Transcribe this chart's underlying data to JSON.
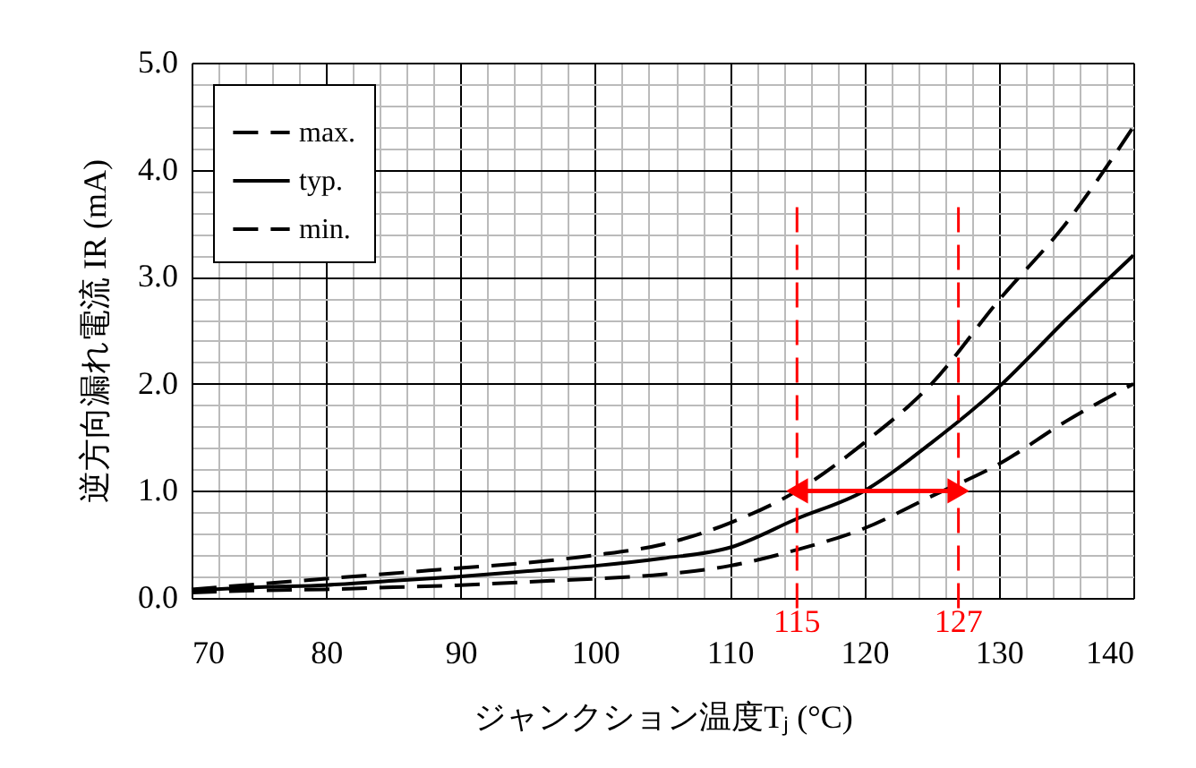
{
  "chart_data": {
    "type": "line",
    "xlabel": "ジャンクション温度Tⱼ (°C)",
    "ylabel": "逆方向漏れ電流  IR (mA)",
    "x": [
      70,
      75,
      80,
      85,
      90,
      95,
      100,
      105,
      110,
      115,
      120,
      125,
      130,
      135,
      140
    ],
    "series": [
      {
        "name": "max.",
        "color": "#000000",
        "line_style": "dashed",
        "values": [
          0.08,
          0.13,
          0.18,
          0.23,
          0.28,
          0.33,
          0.4,
          0.5,
          0.7,
          1.0,
          1.45,
          2.0,
          2.78,
          3.5,
          4.4
        ]
      },
      {
        "name": "typ.",
        "color": "#000000",
        "line_style": "solid",
        "values": [
          0.07,
          0.1,
          0.12,
          0.16,
          0.2,
          0.25,
          0.3,
          0.37,
          0.47,
          0.74,
          1.0,
          1.45,
          1.97,
          2.6,
          3.2
        ]
      },
      {
        "name": "min.",
        "color": "#000000",
        "line_style": "dashed",
        "values": [
          0.05,
          0.07,
          0.08,
          0.1,
          0.12,
          0.15,
          0.18,
          0.22,
          0.3,
          0.45,
          0.65,
          0.95,
          1.25,
          1.65,
          2.0
        ]
      }
    ],
    "xlim": [
      70,
      140
    ],
    "ylim": [
      0,
      5
    ],
    "xticks": [
      70,
      {
        "value": 72,
        "label": null
      },
      {
        "value": 74,
        "label": null
      },
      {
        "value": 76,
        "label": null
      },
      {
        "value": 78,
        "label": null
      },
      80,
      {
        "value": 82,
        "label": null
      },
      {
        "value": 84,
        "label": null
      },
      {
        "value": 86,
        "label": null
      },
      {
        "value": 88,
        "label": null
      },
      90,
      {
        "value": 92,
        "label": null
      },
      {
        "value": 94,
        "label": null
      },
      {
        "value": 96,
        "label": null
      },
      {
        "value": 98,
        "label": null
      },
      100,
      {
        "value": 102,
        "label": null
      },
      {
        "value": 104,
        "label": null
      },
      {
        "value": 106,
        "label": null
      },
      {
        "value": 108,
        "label": null
      },
      110,
      {
        "value": 112,
        "label": null
      },
      {
        "value": 114,
        "label": null
      },
      {
        "value": 116,
        "label": null
      },
      {
        "value": 118,
        "label": null
      },
      120,
      {
        "value": 122,
        "label": null
      },
      {
        "value": 124,
        "label": null
      },
      {
        "value": 126,
        "label": null
      },
      {
        "value": 128,
        "label": null
      },
      130,
      {
        "value": 132,
        "label": null
      },
      {
        "value": 134,
        "label": null
      },
      {
        "value": 136,
        "label": null
      },
      {
        "value": 138,
        "label": null
      },
      140
    ],
    "yticks": [
      {
        "value": 0,
        "label": "0.0"
      },
      {
        "value": 0.2,
        "label": null
      },
      {
        "value": 0.4,
        "label": null
      },
      {
        "value": 0.6,
        "label": null
      },
      {
        "value": 0.8,
        "label": null
      },
      {
        "value": 1,
        "label": "1.0"
      },
      {
        "value": 1.2,
        "label": null
      },
      {
        "value": 1.4,
        "label": null
      },
      {
        "value": 1.6,
        "label": null
      },
      {
        "value": 1.8,
        "label": null
      },
      {
        "value": 2,
        "label": "2.0"
      },
      {
        "value": 2.2,
        "label": null
      },
      {
        "value": 2.4,
        "label": null
      },
      {
        "value": 2.6,
        "label": null
      },
      {
        "value": 2.8,
        "label": null
      },
      {
        "value": 3,
        "label": "3.0"
      },
      {
        "value": 3.2,
        "label": null
      },
      {
        "value": 3.4,
        "label": null
      },
      {
        "value": 3.6,
        "label": null
      },
      {
        "value": 3.8,
        "label": null
      },
      {
        "value": 4,
        "label": "4.0"
      },
      {
        "value": 4.2,
        "label": null
      },
      {
        "value": 4.4,
        "label": null
      },
      {
        "value": 4.6,
        "label": null
      },
      {
        "value": 4.8,
        "label": null
      },
      {
        "value": 5,
        "label": "5.0"
      }
    ],
    "ref_lines": [
      {
        "axis": "x",
        "value": 115,
        "label": "115",
        "color": "#ff0000",
        "line_style": "dashed"
      },
      {
        "axis": "x",
        "value": 127,
        "label": "127",
        "color": "#ff0000",
        "line_style": "dashed"
      }
    ],
    "grid": true,
    "legend": "top left"
  }
}
